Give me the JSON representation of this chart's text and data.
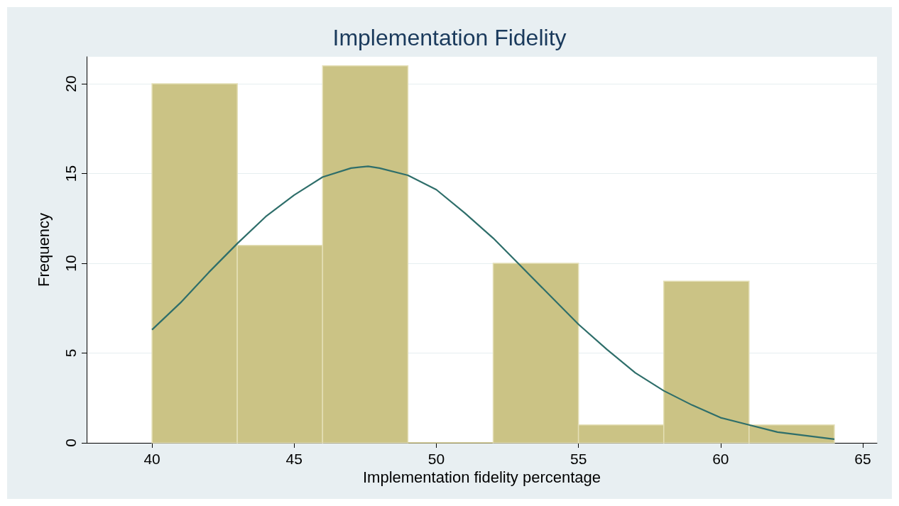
{
  "chart_data": {
    "type": "histogram",
    "title": "Implementation Fidelity",
    "xlabel": "Implementation fidelity percentage",
    "ylabel": "Frequency",
    "series": [
      {
        "type": "histogram",
        "color": "#cbc385",
        "bins": [
          40,
          43,
          46,
          49,
          52,
          55,
          58,
          61,
          64
        ],
        "values": [
          20,
          11,
          21,
          0,
          10,
          1,
          9,
          1
        ]
      },
      {
        "type": "line",
        "color": "#2e6e6a",
        "x": [
          40,
          41,
          42,
          43,
          44,
          45,
          46,
          47,
          47.6,
          48,
          49,
          50,
          51,
          52,
          53,
          54,
          55,
          56,
          57,
          58,
          59,
          60,
          61,
          62,
          63,
          64
        ],
        "values": [
          6.3,
          7.8,
          9.5,
          11.1,
          12.6,
          13.8,
          14.8,
          15.3,
          15.4,
          15.3,
          14.9,
          14.1,
          12.8,
          11.4,
          9.8,
          8.2,
          6.6,
          5.2,
          3.9,
          2.9,
          2.1,
          1.4,
          1.0,
          0.6,
          0.4,
          0.2
        ]
      }
    ],
    "xlim": [
      37.7,
      65.5
    ],
    "xticks": [
      40,
      45,
      50,
      55,
      60,
      65
    ],
    "ylim": [
      0,
      21.5
    ],
    "yticks": [
      0,
      5,
      10,
      15,
      20
    ],
    "grid": "y"
  }
}
